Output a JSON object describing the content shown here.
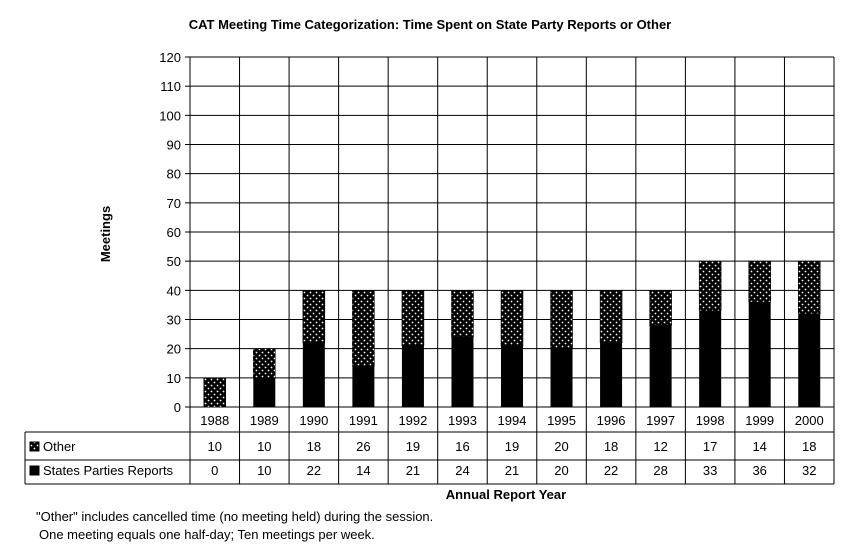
{
  "chart_data": {
    "type": "bar",
    "stacked": true,
    "title": "CAT Meeting Time Categorization: Time Spent on State Party Reports or Other",
    "xlabel": "Annual Report Year",
    "ylabel": "Meetings",
    "ylim": [
      0,
      120
    ],
    "ytick_step": 10,
    "grid": true,
    "legend_placement": "data-table",
    "categories": [
      "1988",
      "1989",
      "1990",
      "1991",
      "1992",
      "1993",
      "1994",
      "1995",
      "1996",
      "1997",
      "1998",
      "1999",
      "2000"
    ],
    "series": [
      {
        "name": "Other",
        "values": [
          10,
          10,
          18,
          26,
          19,
          16,
          19,
          20,
          18,
          12,
          17,
          14,
          18
        ],
        "fill": "dotted",
        "color": "#000000"
      },
      {
        "name": "States Parties Reports",
        "values": [
          0,
          10,
          22,
          14,
          21,
          24,
          21,
          20,
          22,
          28,
          33,
          36,
          32
        ],
        "fill": "solid",
        "color": "#000000"
      }
    ]
  },
  "notes": [
    "\"Other\" includes cancelled time (no meeting held) during the session.",
    "One meeting equals one half-day; Ten meetings per week."
  ]
}
